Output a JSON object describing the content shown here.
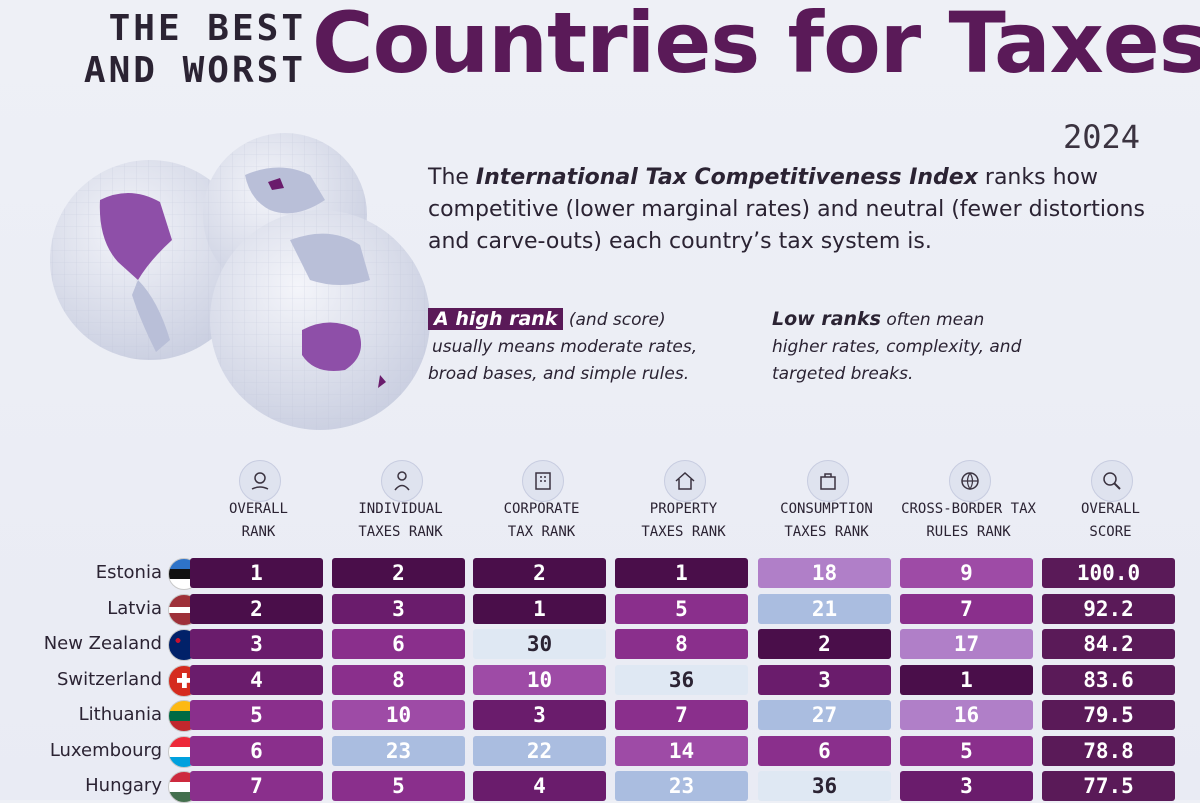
{
  "header": {
    "supertitle_line1": "THE BEST",
    "supertitle_line2": "AND WORST",
    "title": "Countries for Taxes",
    "year": "2024"
  },
  "intro": {
    "pre": "The ",
    "bold": "International Tax Competitiveness Index",
    "post": " ranks how competitive (lower marginal rates) and neutral (fewer distortions and carve-outs) each country’s tax system is."
  },
  "notes": {
    "high_tag": "A high rank",
    "high_paren": " (and score)",
    "high_rest": "usually means moderate rates, broad bases, and simple rules.",
    "low_tag": "Low ranks",
    "low_rest": " often mean higher rates, complexity, and targeted breaks."
  },
  "colors": {
    "title": "#5a1a58",
    "scale": [
      "#4a0e4a",
      "#6a1c6c",
      "#8a2f8c",
      "#9e4ba6",
      "#b07fc8",
      "#aabde0",
      "#dfe8f3"
    ],
    "score_bg": "#5a1a58"
  },
  "columns": [
    {
      "label": "OVERALL\nRANK",
      "icon": "hand-coin-icon"
    },
    {
      "label": "INDIVIDUAL\nTAXES RANK",
      "icon": "person-icon"
    },
    {
      "label": "CORPORATE\nTAX RANK",
      "icon": "office-icon"
    },
    {
      "label": "PROPERTY\nTAXES RANK",
      "icon": "house-icon"
    },
    {
      "label": "CONSUMPTION\nTAXES RANK",
      "icon": "shopping-bag-icon"
    },
    {
      "label": "CROSS-BORDER TAX\nRULES RANK",
      "icon": "globe-icon"
    },
    {
      "label": "OVERALL\nSCORE",
      "icon": "magnifier-icon"
    }
  ],
  "chart_data": {
    "type": "table",
    "columns": [
      "OVERALL RANK",
      "INDIVIDUAL TAXES RANK",
      "CORPORATE TAX RANK",
      "PROPERTY TAXES RANK",
      "CONSUMPTION TAXES RANK",
      "CROSS-BORDER TAX RULES RANK",
      "OVERALL SCORE"
    ],
    "rows": [
      {
        "country": "Estonia",
        "flag": "estonia",
        "values": [
          1,
          2,
          2,
          1,
          18,
          9,
          "100.0"
        ]
      },
      {
        "country": "Latvia",
        "flag": "latvia",
        "values": [
          2,
          3,
          1,
          5,
          21,
          7,
          "92.2"
        ]
      },
      {
        "country": "New Zealand",
        "flag": "new-zealand",
        "values": [
          3,
          6,
          30,
          8,
          2,
          17,
          "84.2"
        ]
      },
      {
        "country": "Switzerland",
        "flag": "switzerland",
        "values": [
          4,
          8,
          10,
          36,
          3,
          1,
          "83.6"
        ]
      },
      {
        "country": "Lithuania",
        "flag": "lithuania",
        "values": [
          5,
          10,
          3,
          7,
          27,
          16,
          "79.5"
        ]
      },
      {
        "country": "Luxembourg",
        "flag": "luxembourg",
        "values": [
          6,
          23,
          22,
          14,
          6,
          5,
          "78.8"
        ]
      },
      {
        "country": "Hungary",
        "flag": "hungary",
        "values": [
          7,
          5,
          4,
          23,
          36,
          3,
          "77.5"
        ]
      }
    ]
  }
}
